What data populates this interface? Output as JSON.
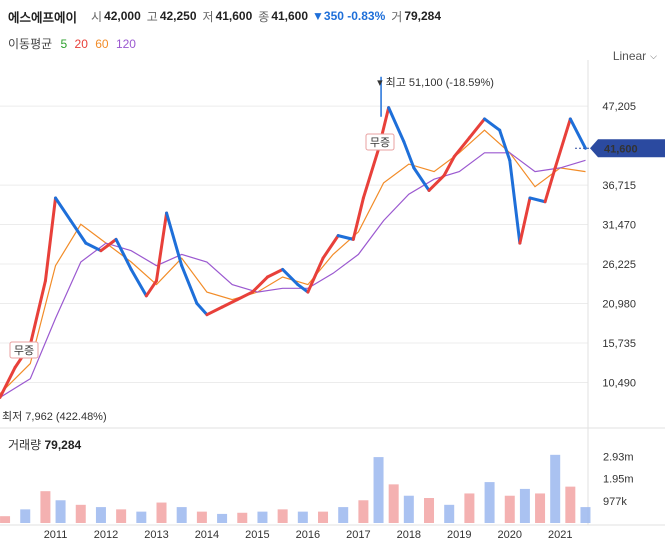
{
  "header": {
    "name": "에스에프에이",
    "open_label": "시",
    "open": "42,000",
    "high_label": "고",
    "high": "42,250",
    "low_label": "저",
    "low": "41,600",
    "close_label": "종",
    "close": "41,600",
    "change": "▼350 -0.83%",
    "volume_label": "거",
    "volume": "79,284"
  },
  "ma_legend": {
    "title": "이동평균",
    "items": [
      {
        "label": "5",
        "color": "#2ca02c"
      },
      {
        "label": "20",
        "color": "#e8403a"
      },
      {
        "label": "60",
        "color": "#f28c28"
      },
      {
        "label": "120",
        "color": "#9b59d0"
      }
    ]
  },
  "scale_mode": "Linear",
  "colors": {
    "up": "#e8403a",
    "down": "#1e6fd9",
    "badge": "#2b4aa0",
    "ma60": "#f28c28",
    "ma120": "#9b59d0"
  },
  "chart_data": {
    "type": "line",
    "title": "",
    "xlabel": "",
    "ylabel": "",
    "x_ticks": [
      "2011",
      "2012",
      "2013",
      "2014",
      "2015",
      "2016",
      "2017",
      "2018",
      "2019",
      "2020",
      "2021"
    ],
    "y_ticks": [
      "47,205",
      "36,715",
      "31,470",
      "26,225",
      "20,980",
      "15,735",
      "10,490"
    ],
    "ylim": [
      7500,
      52000
    ],
    "current_price_label": "41,600",
    "current_price": 41600,
    "high_annotation": "최고 51,100 (-18.59%)",
    "high_value": 51100,
    "low_annotation": "최저 7,962 (422.48%)",
    "low_value": 7962,
    "event_label": "무증",
    "series": [
      {
        "name": "price",
        "x": [
          2009.9,
          2010.2,
          2010.5,
          2010.8,
          2011.0,
          2011.3,
          2011.6,
          2011.9,
          2012.2,
          2012.5,
          2012.8,
          2013.0,
          2013.2,
          2013.5,
          2013.8,
          2014.0,
          2014.3,
          2014.6,
          2014.9,
          2015.2,
          2015.5,
          2015.8,
          2016.0,
          2016.3,
          2016.6,
          2016.9,
          2017.1,
          2017.4,
          2017.6,
          2017.9,
          2018.1,
          2018.4,
          2018.7,
          2018.9,
          2019.2,
          2019.5,
          2019.8,
          2020.0,
          2020.2,
          2020.4,
          2020.7,
          2020.9,
          2021.2,
          2021.5
        ],
        "values": [
          8500,
          12500,
          15500,
          24000,
          35000,
          32000,
          29000,
          28000,
          29500,
          25500,
          22000,
          24000,
          33000,
          26000,
          21000,
          19500,
          20500,
          21500,
          22500,
          24500,
          25500,
          23500,
          22500,
          27000,
          30000,
          29500,
          35000,
          41500,
          47000,
          42500,
          39000,
          36000,
          38000,
          40500,
          43000,
          45500,
          44000,
          40000,
          29000,
          35000,
          34500,
          39000,
          45500,
          41600
        ]
      },
      {
        "name": "ma60",
        "x": [
          2009.9,
          2010.5,
          2011.0,
          2011.5,
          2012.0,
          2012.5,
          2013.0,
          2013.5,
          2014.0,
          2014.5,
          2015.0,
          2015.5,
          2016.0,
          2016.5,
          2017.0,
          2017.5,
          2018.0,
          2018.5,
          2019.0,
          2019.5,
          2020.0,
          2020.5,
          2021.0,
          2021.5
        ],
        "values": [
          9000,
          13000,
          26000,
          31500,
          29000,
          26500,
          23500,
          27000,
          22500,
          21500,
          22500,
          24500,
          23500,
          27500,
          30500,
          37000,
          39500,
          38500,
          41000,
          44000,
          41000,
          36500,
          39000,
          38500
        ]
      },
      {
        "name": "ma120",
        "x": [
          2009.9,
          2010.5,
          2011.0,
          2011.5,
          2012.0,
          2012.5,
          2013.0,
          2013.5,
          2014.0,
          2014.5,
          2015.0,
          2015.5,
          2016.0,
          2016.5,
          2017.0,
          2017.5,
          2018.0,
          2018.5,
          2019.0,
          2019.5,
          2020.0,
          2020.5,
          2021.0,
          2021.5
        ],
        "values": [
          8500,
          11000,
          19000,
          26500,
          29000,
          28000,
          26000,
          27500,
          26500,
          23500,
          22500,
          23000,
          23000,
          25000,
          27500,
          32000,
          35500,
          37500,
          38500,
          41000,
          41000,
          38500,
          39000,
          40000
        ]
      }
    ],
    "volume": {
      "title": "거래량",
      "current": "79,284",
      "y_ticks": [
        "2.93m",
        "1.95m",
        "977k"
      ],
      "ylim": [
        0,
        3300000
      ],
      "x": [
        2010.0,
        2010.4,
        2010.8,
        2011.1,
        2011.5,
        2011.9,
        2012.3,
        2012.7,
        2013.1,
        2013.5,
        2013.9,
        2014.3,
        2014.7,
        2015.1,
        2015.5,
        2015.9,
        2016.3,
        2016.7,
        2017.1,
        2017.4,
        2017.7,
        2018.0,
        2018.4,
        2018.8,
        2019.2,
        2019.6,
        2020.0,
        2020.3,
        2020.6,
        2020.9,
        2021.2,
        2021.5
      ],
      "values": [
        300000,
        600000,
        1400000,
        1000000,
        800000,
        700000,
        600000,
        500000,
        900000,
        700000,
        500000,
        400000,
        450000,
        500000,
        600000,
        500000,
        500000,
        700000,
        1000000,
        2900000,
        1700000,
        1200000,
        1100000,
        800000,
        1300000,
        1800000,
        1200000,
        1500000,
        1300000,
        3000000,
        1600000,
        700000
      ]
    }
  }
}
